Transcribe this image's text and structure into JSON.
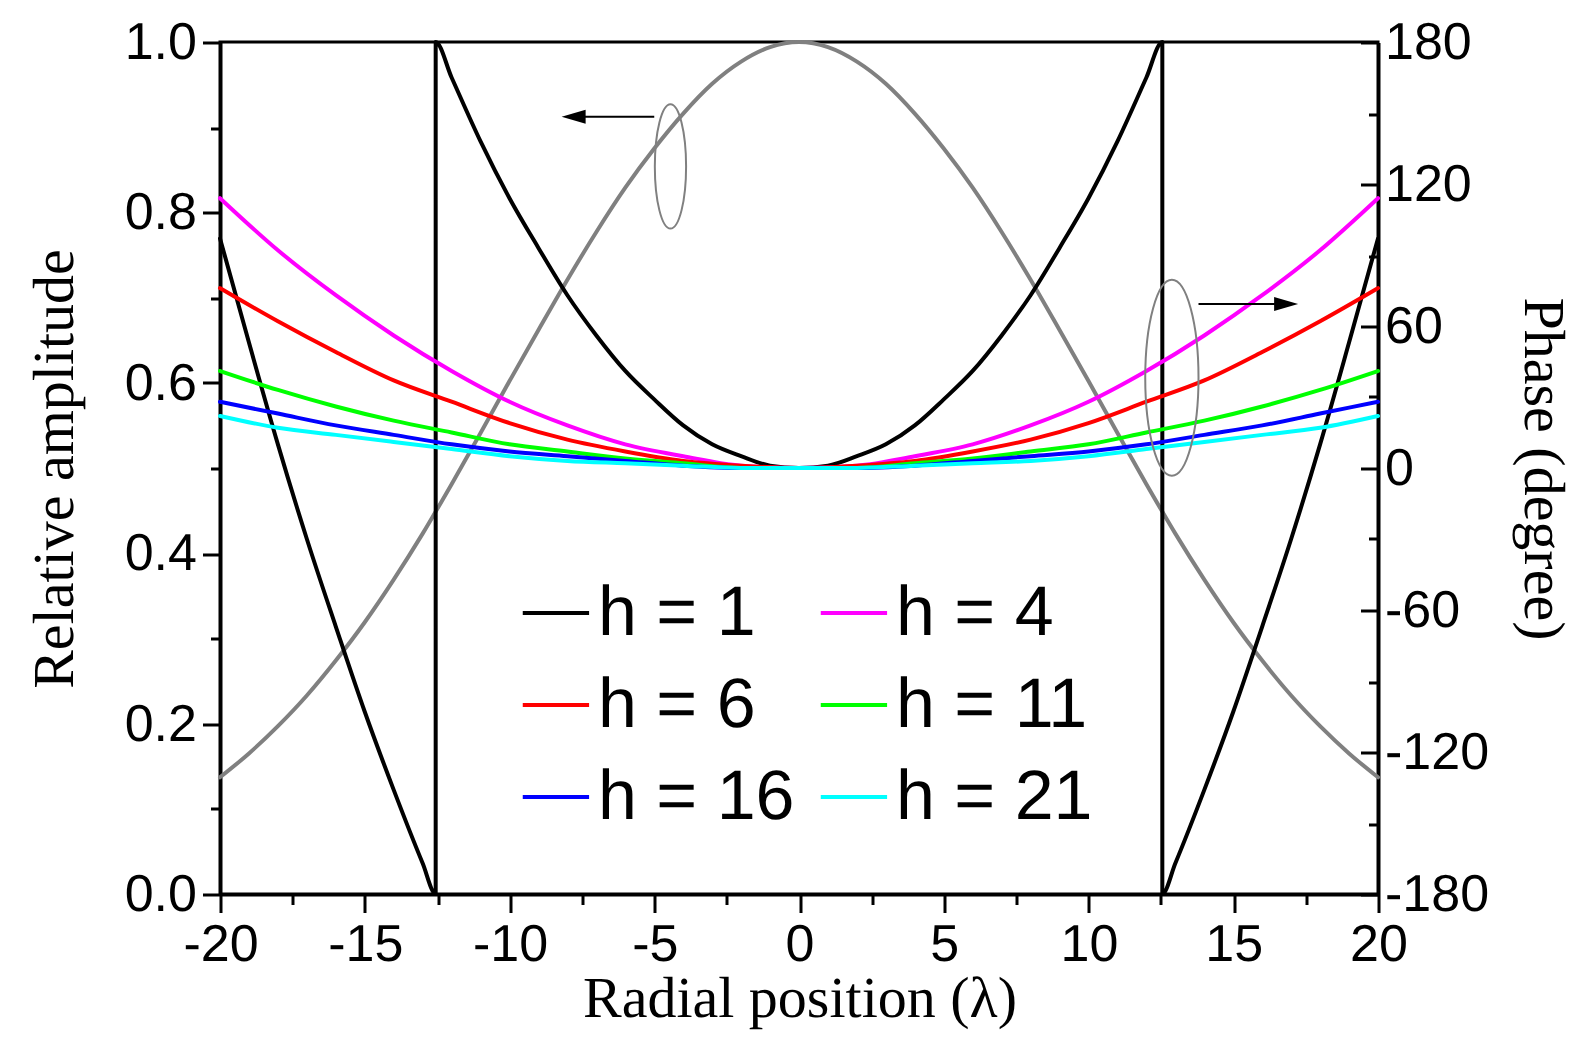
{
  "chart_data": {
    "type": "line",
    "xlabel": "Radial position (λ)",
    "ylabel": "Relative amplitude",
    "y2label": "Phase (degree)",
    "xlim": [
      -20,
      20
    ],
    "xticks": [
      -20,
      {
        "value": -17.5,
        "label": null
      },
      -15,
      {
        "value": -12.5,
        "label": null
      },
      -10,
      {
        "value": -7.5,
        "label": null
      },
      -5,
      {
        "value": -2.5,
        "label": null
      },
      0,
      {
        "value": 2.5,
        "label": null
      },
      5,
      {
        "value": 7.5,
        "label": null
      },
      10,
      {
        "value": 12.5,
        "label": null
      },
      15,
      {
        "value": 17.5,
        "label": null
      },
      20
    ],
    "ylim": [
      0,
      1
    ],
    "yticks": [
      {
        "value": 0,
        "label": "0.0"
      },
      {
        "value": 0.1,
        "label": null
      },
      0.2,
      {
        "value": 0.3,
        "label": null
      },
      0.4,
      {
        "value": 0.5,
        "label": null
      },
      0.6,
      {
        "value": 0.7,
        "label": null
      },
      0.8,
      {
        "value": 0.9,
        "label": null
      },
      {
        "value": 1,
        "label": "1.0"
      }
    ],
    "y2lim": [
      -180,
      180
    ],
    "y2ticks": [
      -180,
      {
        "value": -150,
        "label": null
      },
      -120,
      {
        "value": -90,
        "label": null
      },
      -60,
      {
        "value": -30,
        "label": null
      },
      0,
      {
        "value": 30,
        "label": null
      },
      60,
      {
        "value": 90,
        "label": null
      },
      120,
      {
        "value": 150,
        "label": null
      },
      180
    ],
    "grid": false,
    "legend": "bottom",
    "series": [
      {
        "color": "#808080",
        "x": [
          -20,
          -19,
          -18,
          -17,
          -16,
          -15,
          -14,
          -13,
          -12,
          -11,
          -10,
          -9,
          -8,
          -7,
          -6,
          -5,
          -4,
          -3,
          -2,
          -1,
          0,
          1,
          2,
          3,
          4,
          5,
          6,
          7,
          8,
          9,
          10,
          11,
          12,
          13,
          14,
          15,
          16,
          17,
          18,
          19,
          20
        ],
        "values": [
          0.137,
          0.165,
          0.197,
          0.233,
          0.274,
          0.319,
          0.369,
          0.423,
          0.481,
          0.541,
          0.602,
          0.662,
          0.721,
          0.777,
          0.829,
          0.875,
          0.916,
          0.951,
          0.977,
          0.994,
          1,
          0.994,
          0.977,
          0.951,
          0.916,
          0.875,
          0.829,
          0.777,
          0.721,
          0.662,
          0.602,
          0.541,
          0.481,
          0.423,
          0.369,
          0.319,
          0.274,
          0.233,
          0.197,
          0.165,
          0.137
        ]
      },
      {
        "name": "h = 1",
        "color": "#000000",
        "axis": "y2",
        "x": [
          -20,
          -19,
          -18,
          -17,
          -16,
          -15,
          -14,
          -13,
          -12.55,
          -12.55,
          -12,
          -11,
          -10,
          -9,
          -8,
          -7,
          -6,
          -5,
          -4,
          -3,
          -2,
          -1,
          0,
          1,
          2,
          3,
          4,
          5,
          6,
          7,
          8,
          9,
          10,
          11,
          12,
          12.55,
          12.55,
          13,
          14,
          15,
          16,
          17,
          18,
          19,
          20
        ],
        "values": [
          97,
          53,
          10,
          -30,
          -67,
          -103,
          -136,
          -167,
          -180,
          180,
          165,
          138,
          114,
          93,
          73,
          56,
          41,
          29,
          18,
          10,
          5,
          1,
          0,
          1,
          5,
          10,
          18,
          29,
          41,
          56,
          73,
          93,
          114,
          138,
          165,
          180,
          -180,
          -167,
          -136,
          -103,
          -67,
          -30,
          10,
          53,
          97
        ]
      },
      {
        "name": "h = 4",
        "color": "#ff00ff",
        "axis": "y2",
        "x": [
          -20,
          -18,
          -16,
          -14,
          -12,
          -10,
          -8,
          -6,
          -4,
          -2,
          0,
          2,
          4,
          6,
          8,
          10,
          12,
          14,
          16,
          18,
          20
        ],
        "values": [
          114,
          92,
          73,
          56,
          41,
          28,
          18,
          10,
          5,
          1,
          0,
          1,
          5,
          10,
          18,
          28,
          41,
          56,
          73,
          92,
          114
        ]
      },
      {
        "name": "h = 6",
        "color": "#ff0000",
        "axis": "y2",
        "x": [
          -20,
          -18,
          -16,
          -14,
          -12,
          -10,
          -8,
          -6,
          -4,
          -2,
          0,
          2,
          4,
          6,
          8,
          10,
          12,
          14,
          16,
          18,
          20
        ],
        "values": [
          76,
          62,
          49,
          37,
          28,
          19,
          12,
          7,
          3,
          1,
          0,
          1,
          3,
          7,
          12,
          19,
          28,
          37,
          49,
          62,
          76
        ]
      },
      {
        "name": "h = 11",
        "color": "#00ff00",
        "axis": "y2",
        "x": [
          -20,
          -18,
          -16,
          -14,
          -12,
          -10,
          -8,
          -6,
          -4,
          -2,
          0,
          2,
          4,
          6,
          8,
          10,
          12,
          14,
          16,
          18,
          20
        ],
        "values": [
          41,
          33,
          26,
          20,
          15,
          10,
          7,
          4,
          2,
          0,
          0,
          0,
          2,
          4,
          7,
          10,
          15,
          20,
          26,
          33,
          41
        ]
      },
      {
        "name": "h = 16",
        "color": "#0000ff",
        "axis": "y2",
        "x": [
          -20,
          -18,
          -16,
          -14,
          -12,
          -10,
          -8,
          -6,
          -4,
          -2,
          0,
          2,
          4,
          6,
          8,
          10,
          12,
          14,
          16,
          18,
          20
        ],
        "values": [
          28,
          23,
          18,
          14,
          10,
          7,
          5,
          3,
          1,
          0,
          0,
          0,
          1,
          3,
          5,
          7,
          10,
          14,
          18,
          23,
          28
        ]
      },
      {
        "name": "h = 21",
        "color": "#00ffff",
        "axis": "y2",
        "x": [
          -20,
          -18,
          -16,
          -14,
          -12,
          -10,
          -8,
          -6,
          -4,
          -2,
          0,
          2,
          4,
          6,
          8,
          10,
          12,
          14,
          16,
          18,
          20
        ],
        "values": [
          22,
          17,
          14,
          11,
          8,
          5,
          3,
          2,
          1,
          0,
          0,
          0,
          1,
          2,
          3,
          5,
          8,
          11,
          14,
          17,
          22
        ]
      }
    ]
  }
}
